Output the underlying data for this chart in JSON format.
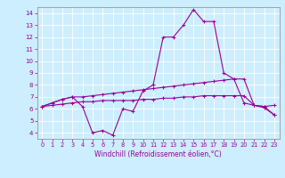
{
  "xlabel": "Windchill (Refroidissement éolien,°C)",
  "bg_color": "#cceeff",
  "grid_color": "#ffffff",
  "line_color": "#990099",
  "x": [
    0,
    1,
    2,
    3,
    4,
    5,
    6,
    7,
    8,
    9,
    10,
    11,
    12,
    13,
    14,
    15,
    16,
    17,
    18,
    19,
    20,
    21,
    22,
    23
  ],
  "line1": [
    6.2,
    6.5,
    6.8,
    7.0,
    6.2,
    4.0,
    4.2,
    3.8,
    6.0,
    5.8,
    7.5,
    8.0,
    12.0,
    12.0,
    13.0,
    14.3,
    13.3,
    13.3,
    9.0,
    8.5,
    6.5,
    6.3,
    6.2,
    6.3
  ],
  "line2": [
    6.2,
    6.5,
    6.8,
    7.0,
    7.0,
    7.1,
    7.2,
    7.3,
    7.4,
    7.5,
    7.6,
    7.7,
    7.8,
    7.9,
    8.0,
    8.1,
    8.2,
    8.3,
    8.4,
    8.5,
    8.5,
    6.3,
    6.2,
    5.5
  ],
  "line3": [
    6.2,
    6.3,
    6.4,
    6.5,
    6.6,
    6.6,
    6.7,
    6.7,
    6.7,
    6.7,
    6.8,
    6.8,
    6.9,
    6.9,
    7.0,
    7.0,
    7.1,
    7.1,
    7.1,
    7.1,
    7.1,
    6.3,
    6.1,
    5.5
  ],
  "ylim": [
    3.5,
    14.5
  ],
  "xlim": [
    -0.5,
    23.5
  ],
  "yticks": [
    4,
    5,
    6,
    7,
    8,
    9,
    10,
    11,
    12,
    13,
    14
  ],
  "xticks": [
    0,
    1,
    2,
    3,
    4,
    5,
    6,
    7,
    8,
    9,
    10,
    11,
    12,
    13,
    14,
    15,
    16,
    17,
    18,
    19,
    20,
    21,
    22,
    23
  ]
}
